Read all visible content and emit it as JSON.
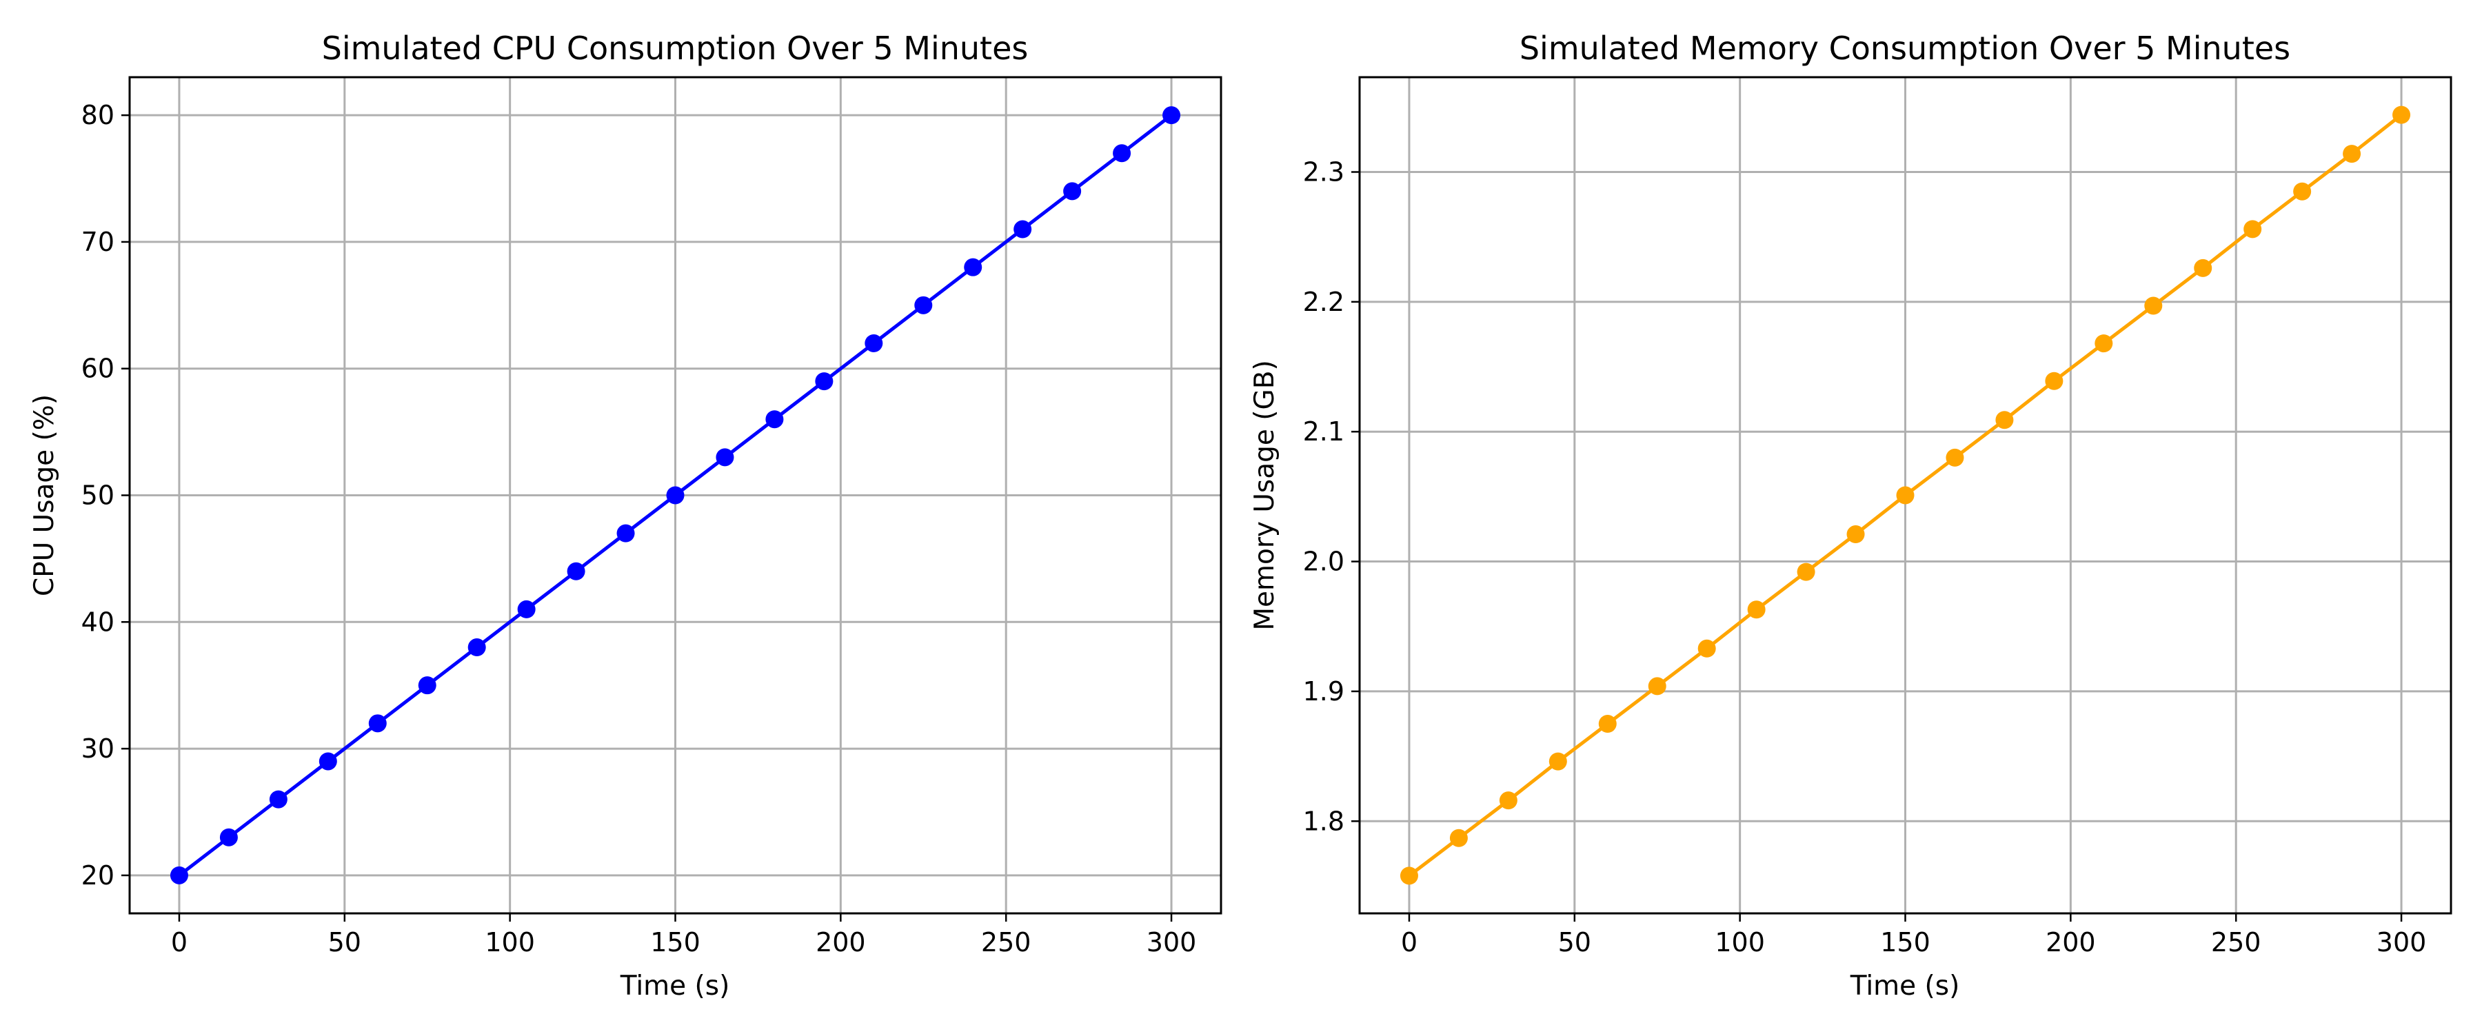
{
  "chart_data": [
    {
      "type": "line",
      "title": "Simulated CPU Consumption Over 5 Minutes",
      "xlabel": "Time (s)",
      "ylabel": "CPU Usage (%)",
      "xlim": [
        -15,
        315
      ],
      "ylim": [
        17,
        83
      ],
      "xticks": [
        0,
        50,
        100,
        150,
        200,
        250,
        300
      ],
      "xtick_labels": [
        "0",
        "50",
        "100",
        "150",
        "200",
        "250",
        "300"
      ],
      "yticks": [
        20,
        30,
        40,
        50,
        60,
        70,
        80
      ],
      "ytick_labels": [
        "20",
        "30",
        "40",
        "50",
        "60",
        "70",
        "80"
      ],
      "grid": true,
      "legend": false,
      "series": [
        {
          "color": "#0000ff",
          "marker": "circle",
          "x": [
            0,
            15,
            30,
            45,
            60,
            75,
            90,
            105,
            120,
            135,
            150,
            165,
            180,
            195,
            210,
            225,
            240,
            255,
            270,
            285,
            300
          ],
          "y": [
            20,
            23,
            26,
            29,
            32,
            35,
            38,
            41,
            44,
            47,
            50,
            53,
            56,
            59,
            62,
            65,
            68,
            71,
            74,
            77,
            80
          ]
        }
      ]
    },
    {
      "type": "line",
      "title": "Simulated Memory Consumption Over 5 Minutes",
      "xlabel": "Time (s)",
      "ylabel": "Memory Usage (GB)",
      "xlim": [
        -15,
        315
      ],
      "ylim": [
        1.729,
        2.373
      ],
      "xticks": [
        0,
        50,
        100,
        150,
        200,
        250,
        300
      ],
      "xtick_labels": [
        "0",
        "50",
        "100",
        "150",
        "200",
        "250",
        "300"
      ],
      "yticks": [
        1.8,
        1.9,
        2.0,
        2.1,
        2.2,
        2.3
      ],
      "ytick_labels": [
        "1.8",
        "1.9",
        "2.0",
        "2.1",
        "2.2",
        "2.3"
      ],
      "grid": true,
      "legend": false,
      "series": [
        {
          "color": "#ffa500",
          "marker": "circle",
          "x": [
            0,
            15,
            30,
            45,
            60,
            75,
            90,
            105,
            120,
            135,
            150,
            165,
            180,
            195,
            210,
            225,
            240,
            255,
            270,
            285,
            300
          ],
          "y": [
            1.758,
            1.787,
            1.816,
            1.846,
            1.875,
            1.904,
            1.933,
            1.963,
            1.992,
            2.021,
            2.051,
            2.08,
            2.109,
            2.139,
            2.168,
            2.197,
            2.226,
            2.256,
            2.285,
            2.314,
            2.344
          ]
        }
      ]
    }
  ]
}
